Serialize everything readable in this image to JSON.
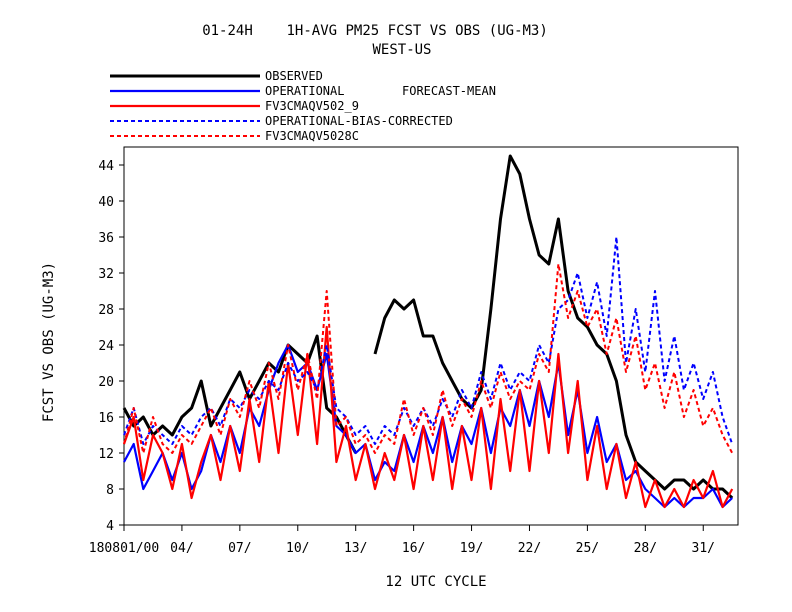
{
  "chart_data": {
    "type": "line",
    "title": "01-24H    1H-AVG PM25 FCST VS OBS (UG-M3)",
    "subtitle": "WEST-US",
    "xlabel": "12 UTC CYCLE",
    "ylabel": "FCST VS OBS (UG-M3)",
    "legend_note": "FORECAST-MEAN",
    "legend_position": "top-left",
    "grid": false,
    "xlim": [
      0,
      31.8
    ],
    "ylim": [
      4,
      46
    ],
    "yticks": [
      4,
      8,
      12,
      16,
      20,
      24,
      28,
      32,
      36,
      40,
      44
    ],
    "xticks": [
      {
        "x": 0,
        "label": "180801/00"
      },
      {
        "x": 3,
        "label": "04/"
      },
      {
        "x": 6,
        "label": "07/"
      },
      {
        "x": 9,
        "label": "10/"
      },
      {
        "x": 12,
        "label": "13/"
      },
      {
        "x": 15,
        "label": "16/"
      },
      {
        "x": 18,
        "label": "19/"
      },
      {
        "x": 21,
        "label": "22/"
      },
      {
        "x": 24,
        "label": "25/"
      },
      {
        "x": 27,
        "label": "28/"
      },
      {
        "x": 30,
        "label": "31/"
      }
    ],
    "series": [
      {
        "name": "OBSERVED",
        "color": "#000000",
        "dash": "solid",
        "width": 3,
        "x": [
          0,
          0.5,
          1,
          1.5,
          2,
          2.5,
          3,
          3.5,
          4,
          4.5,
          5,
          5.5,
          6,
          6.5,
          7,
          7.5,
          8,
          8.5,
          9,
          9.5,
          10,
          10.5,
          11,
          11.5,
          12
        ],
        "y": [
          17,
          15,
          16,
          14,
          15,
          14,
          16,
          17,
          20,
          15,
          17,
          19,
          21,
          18,
          20,
          22,
          21,
          24,
          23,
          22,
          25,
          17,
          16,
          14,
          12
        ]
      },
      {
        "name": "OBSERVED",
        "color": "#000000",
        "dash": "solid",
        "width": 3,
        "x": [
          13,
          13.5,
          14,
          14.5,
          15,
          15.5,
          16,
          16.5,
          17,
          17.5,
          18,
          18.5,
          19,
          19.5,
          20,
          20.5,
          21,
          21.5,
          22,
          22.5,
          23,
          23.5,
          24,
          24.5,
          25,
          25.5,
          26,
          26.5,
          27,
          27.5,
          28,
          28.5,
          29,
          29.5,
          30,
          30.5,
          31,
          31.5
        ],
        "y": [
          23,
          27,
          29,
          28,
          29,
          25,
          25,
          22,
          20,
          18,
          17,
          19,
          28,
          38,
          45,
          43,
          38,
          34,
          33,
          38,
          30,
          27,
          26,
          24,
          23,
          20,
          14,
          11,
          10,
          9,
          8,
          9,
          9,
          8,
          9,
          8,
          8,
          7
        ]
      },
      {
        "name": "OPERATIONAL",
        "color": "#0000ff",
        "dash": "solid",
        "width": 2.2,
        "x": [
          0,
          0.5,
          1,
          1.5,
          2,
          2.5,
          3,
          3.5,
          4,
          4.5,
          5,
          5.5,
          6,
          6.5,
          7,
          7.5,
          8,
          8.5,
          9,
          9.5,
          10,
          10.5,
          11,
          11.5,
          12,
          12.5,
          13,
          13.5,
          14,
          14.5,
          15,
          15.5,
          16,
          16.5,
          17,
          17.5,
          18,
          18.5,
          19,
          19.5,
          20,
          20.5,
          21,
          21.5,
          22,
          22.5,
          23,
          23.5,
          24,
          24.5,
          25,
          25.5,
          26,
          26.5,
          27,
          27.5,
          28,
          28.5,
          29,
          29.5,
          30,
          30.5,
          31,
          31.5
        ],
        "y": [
          11,
          13,
          8,
          10,
          12,
          9,
          12,
          8,
          10,
          14,
          11,
          15,
          12,
          17,
          15,
          19,
          22,
          24,
          21,
          22,
          19,
          23,
          15,
          14,
          12,
          13,
          9,
          11,
          10,
          14,
          11,
          15,
          12,
          16,
          11,
          15,
          13,
          17,
          12,
          17,
          15,
          19,
          15,
          20,
          16,
          22,
          14,
          19,
          12,
          16,
          11,
          13,
          9,
          10,
          8,
          7,
          6,
          7,
          6,
          7,
          7,
          8,
          6,
          7
        ]
      },
      {
        "name": "FV3CMAQV502_9",
        "color": "#ff0000",
        "dash": "solid",
        "width": 2.2,
        "x": [
          0,
          0.5,
          1,
          1.5,
          2,
          2.5,
          3,
          3.5,
          4,
          4.5,
          5,
          5.5,
          6,
          6.5,
          7,
          7.5,
          8,
          8.5,
          9,
          9.5,
          10,
          10.5,
          11,
          11.5,
          12,
          12.5,
          13,
          13.5,
          14,
          14.5,
          15,
          15.5,
          16,
          16.5,
          17,
          17.5,
          18,
          18.5,
          19,
          19.5,
          20,
          20.5,
          21,
          21.5,
          22,
          22.5,
          23,
          23.5,
          24,
          24.5,
          25,
          25.5,
          26,
          26.5,
          27,
          27.5,
          28,
          28.5,
          29,
          29.5,
          30,
          30.5,
          31,
          31.5
        ],
        "y": [
          13,
          16,
          9,
          14,
          12,
          8,
          13,
          7,
          11,
          14,
          9,
          15,
          10,
          18,
          11,
          20,
          12,
          22,
          14,
          23,
          13,
          26,
          11,
          15,
          9,
          13,
          8,
          12,
          9,
          14,
          8,
          15,
          9,
          16,
          8,
          15,
          9,
          17,
          8,
          18,
          10,
          19,
          10,
          20,
          12,
          23,
          12,
          20,
          9,
          15,
          8,
          13,
          7,
          11,
          6,
          9,
          6,
          8,
          6,
          9,
          7,
          10,
          6,
          8
        ]
      },
      {
        "name": "OPERATIONAL-BIAS-CORRECTED",
        "color": "#0000ff",
        "dash": "4,3",
        "width": 2,
        "x": [
          0,
          0.5,
          1,
          1.5,
          2,
          2.5,
          3,
          3.5,
          4,
          4.5,
          5,
          5.5,
          6,
          6.5,
          7,
          7.5,
          8,
          8.5,
          9,
          9.5,
          10,
          10.5,
          11,
          11.5,
          12,
          12.5,
          13,
          13.5,
          14,
          14.5,
          15,
          15.5,
          16,
          16.5,
          17,
          17.5,
          18,
          18.5,
          19,
          19.5,
          20,
          20.5,
          21,
          21.5,
          22,
          22.5,
          23,
          23.5,
          24,
          24.5,
          25,
          25.5,
          26,
          26.5,
          27,
          27.5,
          28,
          28.5,
          29,
          29.5,
          30,
          30.5,
          31,
          31.5
        ],
        "y": [
          14,
          17,
          13,
          15,
          14,
          13,
          15,
          14,
          16,
          17,
          15,
          18,
          17,
          19,
          18,
          20,
          19,
          22,
          20,
          21,
          19,
          24,
          17,
          16,
          14,
          15,
          13,
          15,
          14,
          17,
          15,
          17,
          15,
          18,
          16,
          19,
          17,
          21,
          18,
          22,
          19,
          21,
          20,
          24,
          22,
          28,
          29,
          32,
          27,
          31,
          25,
          36,
          22,
          28,
          21,
          30,
          20,
          25,
          19,
          22,
          18,
          21,
          16,
          13
        ]
      },
      {
        "name": "FV3CMAQV5028C",
        "color": "#ff0000",
        "dash": "4,3",
        "width": 2,
        "x": [
          0,
          0.5,
          1,
          1.5,
          2,
          2.5,
          3,
          3.5,
          4,
          4.5,
          5,
          5.5,
          6,
          6.5,
          7,
          7.5,
          8,
          8.5,
          9,
          9.5,
          10,
          10.5,
          11,
          11.5,
          12,
          12.5,
          13,
          13.5,
          14,
          14.5,
          15,
          15.5,
          16,
          16.5,
          17,
          17.5,
          18,
          18.5,
          19,
          19.5,
          20,
          20.5,
          21,
          21.5,
          22,
          22.5,
          23,
          23.5,
          24,
          24.5,
          25,
          25.5,
          26,
          26.5,
          27,
          27.5,
          28,
          28.5,
          29,
          29.5,
          30,
          30.5,
          31,
          31.5
        ],
        "y": [
          13,
          17,
          12,
          16,
          13,
          12,
          14,
          13,
          15,
          17,
          14,
          18,
          16,
          20,
          17,
          22,
          18,
          24,
          19,
          23,
          18,
          30,
          15,
          16,
          13,
          14,
          12,
          14,
          13,
          18,
          14,
          17,
          14,
          19,
          15,
          18,
          16,
          20,
          17,
          21,
          18,
          20,
          19,
          23,
          21,
          33,
          27,
          30,
          26,
          28,
          23,
          27,
          21,
          25,
          19,
          22,
          17,
          21,
          16,
          19,
          15,
          17,
          14,
          12
        ]
      }
    ]
  }
}
